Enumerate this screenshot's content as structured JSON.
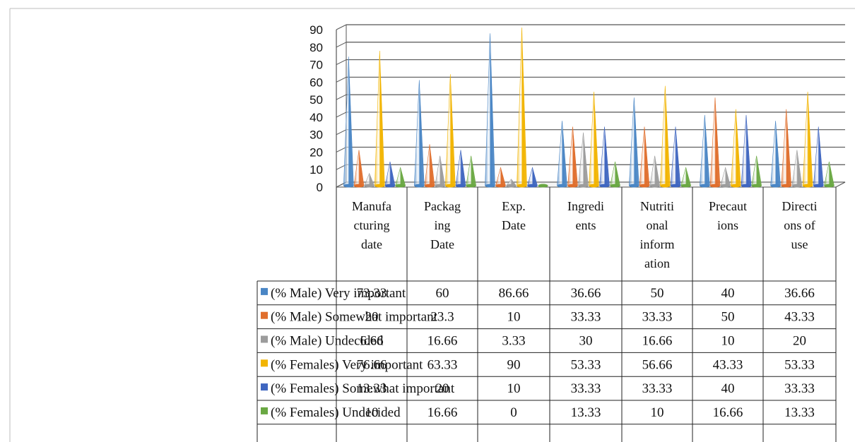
{
  "chart_data": {
    "type": "bar",
    "style": "3d-cone",
    "categories": [
      [
        "Manufa",
        "cturing",
        "date"
      ],
      [
        "Packag",
        "ing",
        "Date"
      ],
      [
        "Exp.",
        "Date"
      ],
      [
        "Ingredi",
        "ents"
      ],
      [
        "Nutriti",
        "onal",
        "inform",
        "ation"
      ],
      [
        "Precaut",
        "ions"
      ],
      [
        "Directi",
        "ons of",
        "use"
      ]
    ],
    "series": [
      {
        "name": "(%  Male) Very important",
        "color": "#4a86c5",
        "values": [
          73.33,
          60,
          86.66,
          36.66,
          50,
          40,
          36.66
        ],
        "labels": [
          "73.33",
          "60",
          "86.66",
          "36.66",
          "50",
          "40",
          "36.66"
        ]
      },
      {
        "name": "(%  Male) Somewhat important",
        "color": "#e06e2c",
        "values": [
          20,
          23.3,
          10,
          33.33,
          33.33,
          50,
          43.33
        ],
        "labels": [
          "20",
          "23.3",
          "10",
          "33.33",
          "33.33",
          "50",
          "43.33"
        ]
      },
      {
        "name": "(%  Male) Undecided",
        "color": "#9c9c9c",
        "values": [
          6.66,
          16.66,
          3.33,
          30,
          16.66,
          10,
          20
        ],
        "labels": [
          "6.66",
          "16.66",
          "3.33",
          "30",
          "16.66",
          "10",
          "20"
        ]
      },
      {
        "name": " (% Females) Very important",
        "color": "#f2b400",
        "values": [
          76.66,
          63.33,
          90,
          53.33,
          56.66,
          43.33,
          53.33
        ],
        "labels": [
          "76.66",
          "63.33",
          "90",
          "53.33",
          "56.66",
          "43.33",
          "53.33"
        ]
      },
      {
        "name": " (% Females) Somewhat important",
        "color": "#3f66c0",
        "values": [
          13.33,
          20,
          10,
          33.33,
          33.33,
          40,
          33.33
        ],
        "labels": [
          "13.33",
          "20",
          "10",
          "33.33",
          "33.33",
          "40",
          "33.33"
        ]
      },
      {
        "name": " (% Females) Undecided",
        "color": "#6aa843",
        "values": [
          10,
          16.66,
          0,
          13.33,
          10,
          16.66,
          13.33
        ],
        "labels": [
          "10",
          "16.66",
          "0",
          "13.33",
          "10",
          "16.66",
          "13.33"
        ]
      }
    ],
    "yticks": [
      "0",
      "10",
      "20",
      "30",
      "40",
      "50",
      "60",
      "70",
      "80",
      "90"
    ],
    "ylim": [
      0,
      90
    ],
    "grid": true,
    "legend": "data-table"
  }
}
